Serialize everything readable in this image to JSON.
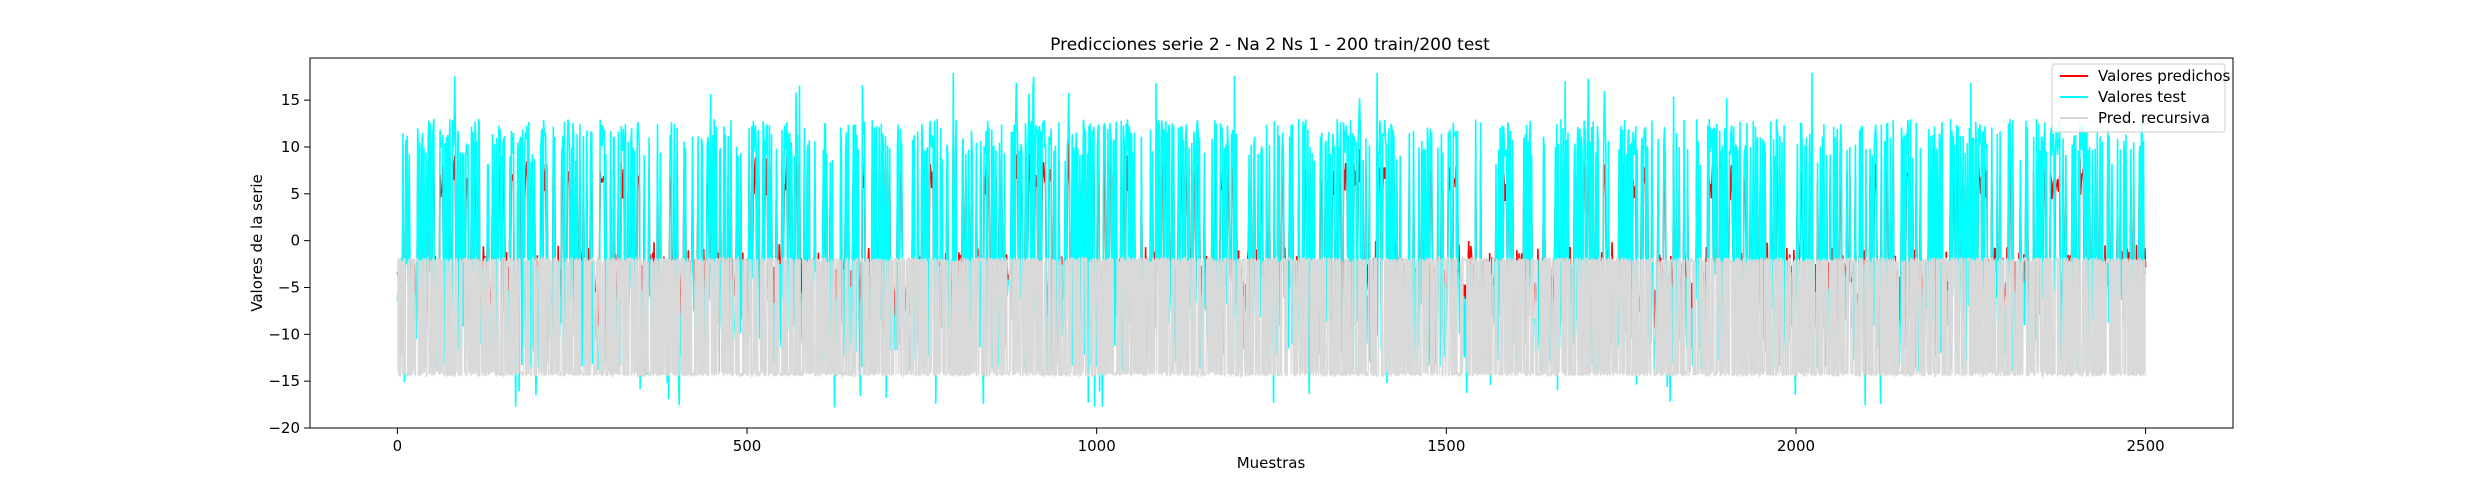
{
  "chart_data": {
    "type": "line",
    "title": "Predicciones serie 2 - Na 2 Ns 1 - 200 train/200 test",
    "xlabel": "Muestras",
    "ylabel": "Valores de la serie",
    "xlim": [
      -125,
      2625
    ],
    "ylim": [
      -20,
      19.5
    ],
    "xticks": [
      0,
      500,
      1000,
      1500,
      2000,
      2500
    ],
    "yticks": [
      -20,
      -15,
      -10,
      -5,
      0,
      5,
      10,
      15
    ],
    "grid": false,
    "legend_position": "top-right",
    "x_range": [
      0,
      2500
    ],
    "series": [
      {
        "name": "Valores predichos",
        "color": "#ff0000",
        "typical_low": -12,
        "typical_high": 13,
        "spike_max": 13.3
      },
      {
        "name": "Valores test",
        "color": "#00ffff",
        "typical_low": -14,
        "typical_high": 13,
        "max": 18,
        "min": -18.2
      },
      {
        "name": "Pred. recursiva",
        "color": "#d9d9d9",
        "band": [
          -14.5,
          -1.8
        ]
      }
    ]
  }
}
